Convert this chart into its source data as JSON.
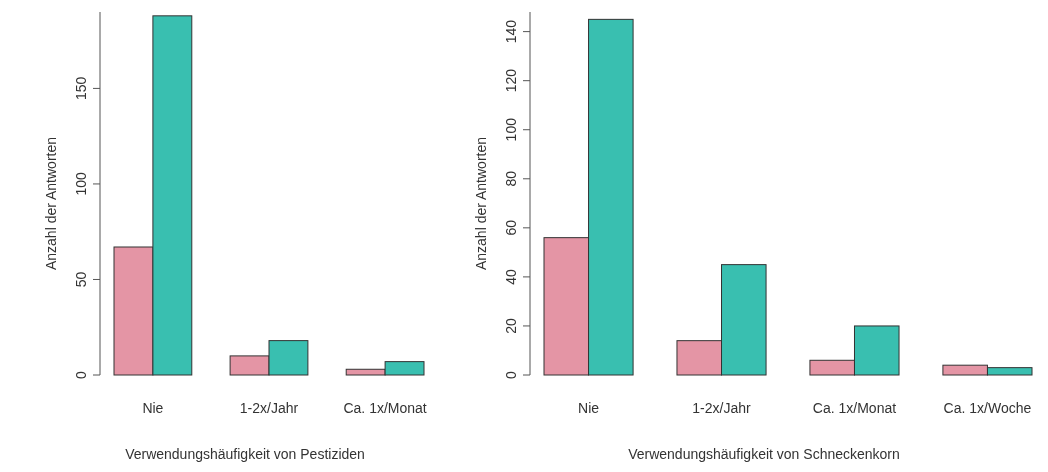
{
  "chart_data": [
    {
      "type": "bar",
      "xlabel": "Verwendungshäufigkeit von Pestiziden",
      "ylabel": "Anzahl der Antworten",
      "categories": [
        "Nie",
        "1-2x/Jahr",
        "Ca. 1x/Monat"
      ],
      "series": [
        {
          "color": "#e495a5",
          "values": [
            67,
            10,
            3
          ]
        },
        {
          "color": "#39bfb0",
          "values": [
            188,
            18,
            7
          ]
        }
      ],
      "ylim": [
        0,
        190
      ],
      "yticks": [
        0,
        50,
        100,
        150
      ],
      "grid": false
    },
    {
      "type": "bar",
      "xlabel": "Verwendungshäufigkeit von Schneckenkorn",
      "ylabel": "Anzahl der Antworten",
      "categories": [
        "Nie",
        "1-2x/Jahr",
        "Ca. 1x/Monat",
        "Ca. 1x/Woche"
      ],
      "series": [
        {
          "color": "#e495a5",
          "values": [
            56,
            14,
            6,
            4
          ]
        },
        {
          "color": "#39bfb0",
          "values": [
            145,
            45,
            20,
            3
          ]
        }
      ],
      "ylim": [
        0,
        148
      ],
      "yticks": [
        0,
        20,
        40,
        60,
        80,
        100,
        120,
        140
      ],
      "grid": false
    }
  ]
}
